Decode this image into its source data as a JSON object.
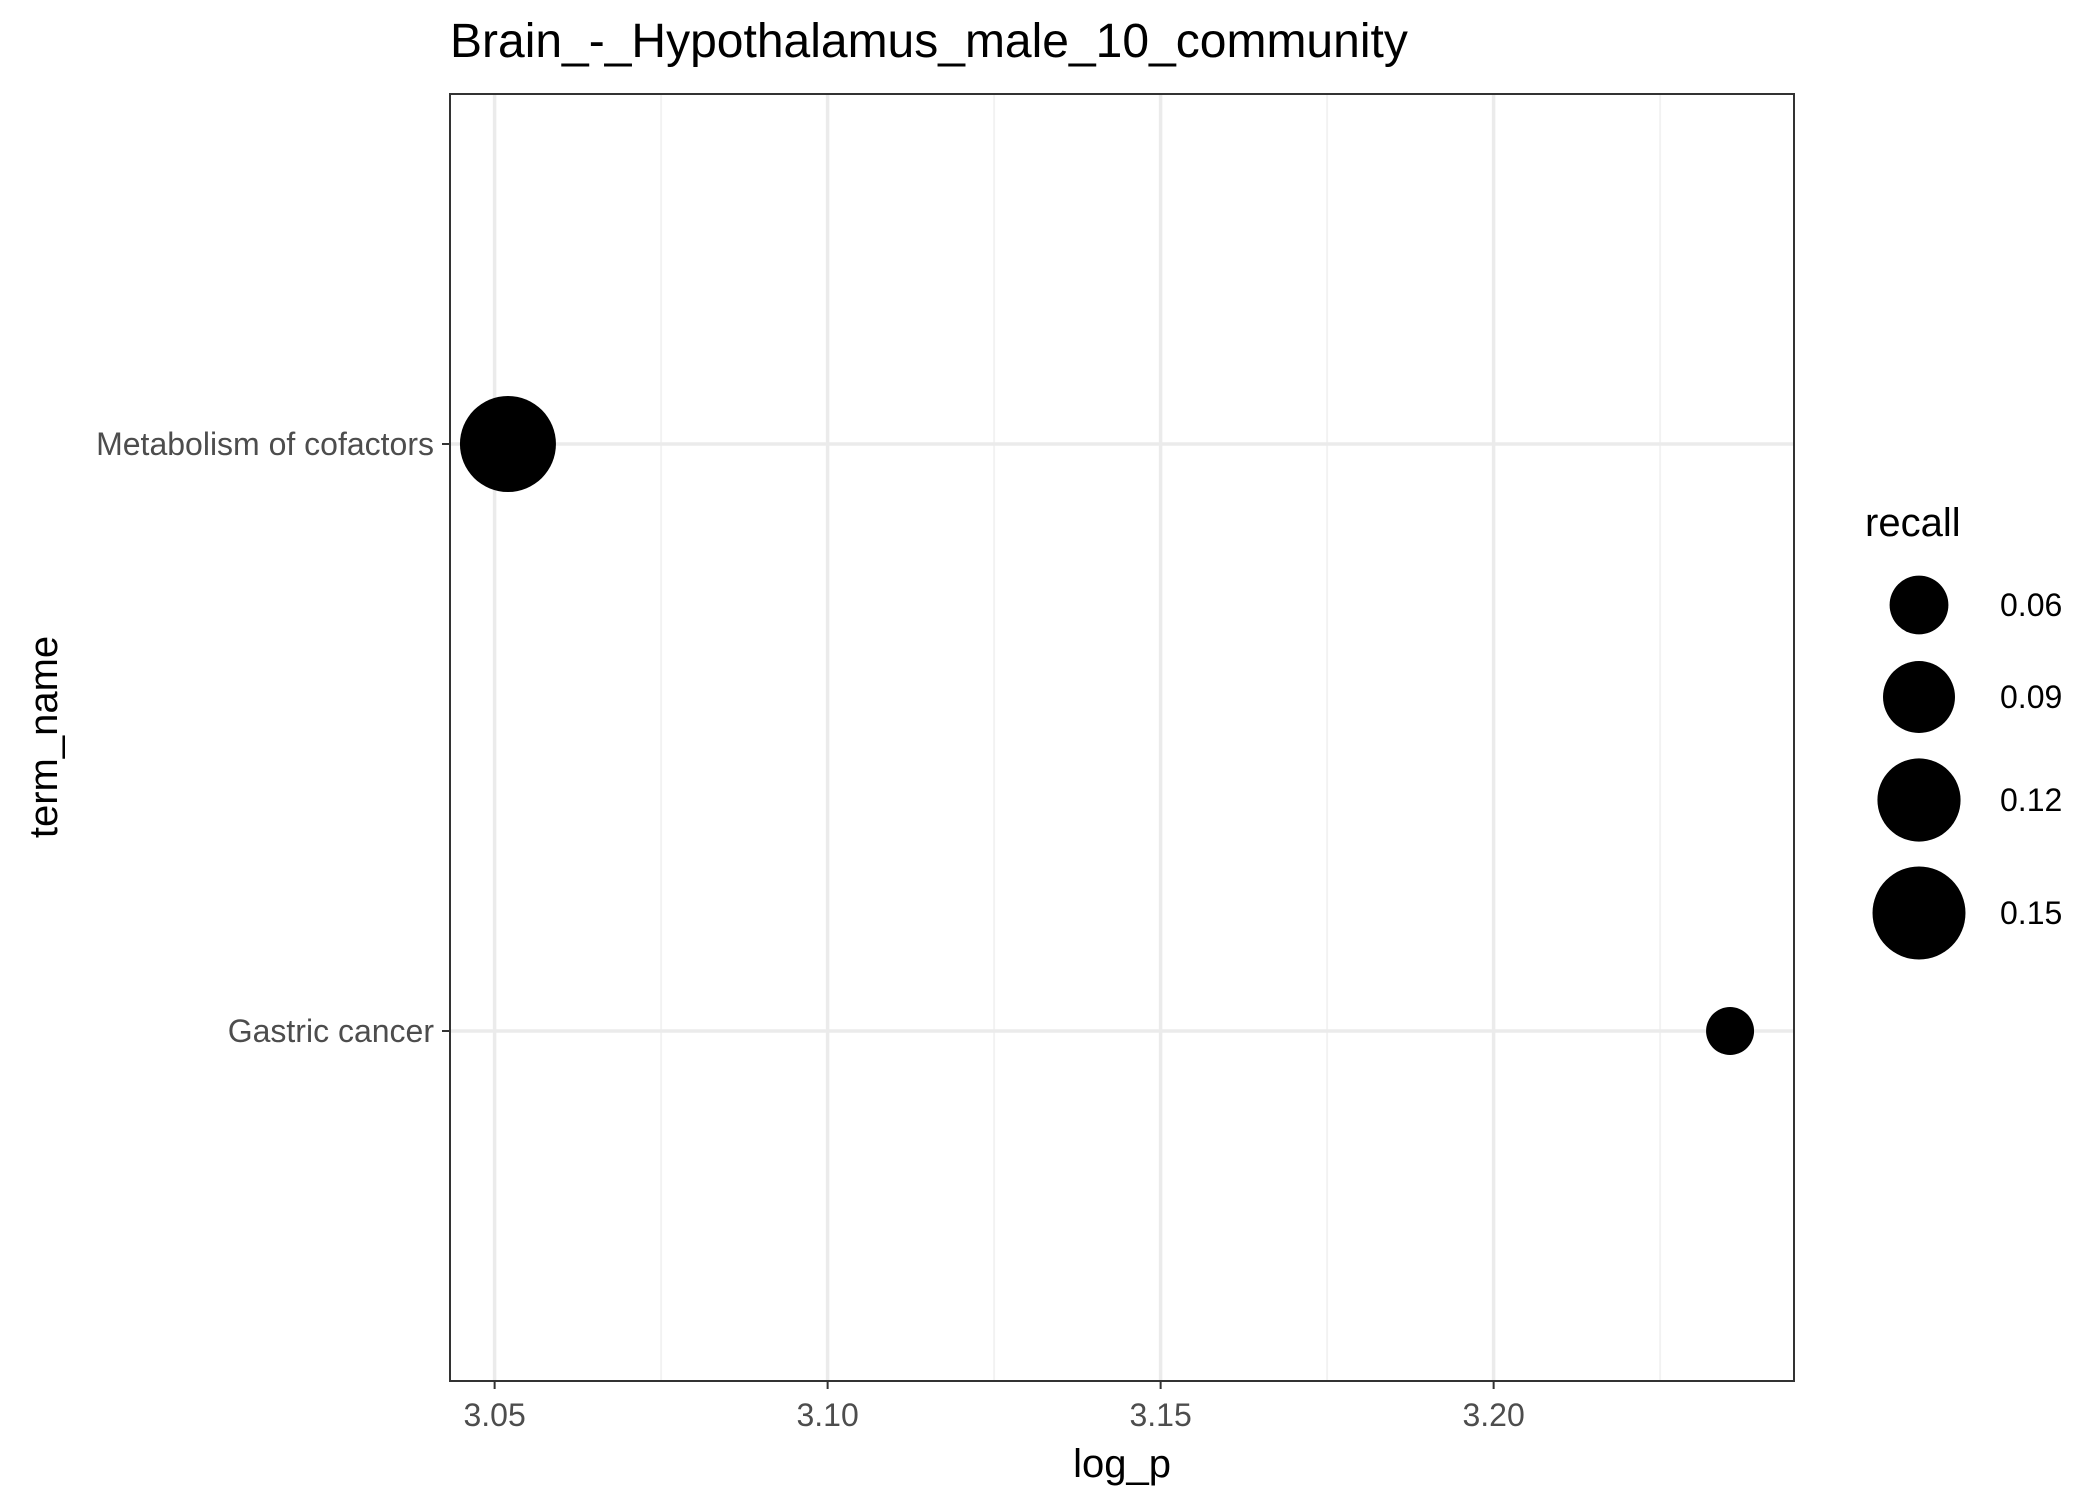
{
  "chart_data": {
    "type": "scatter",
    "title": "Brain_-_Hypothalamus_male_10_community",
    "xlabel": "log_p",
    "ylabel": "term_name",
    "xlim": [
      3.0433,
      3.2451
    ],
    "x_ticks": [
      "3.05",
      "3.10",
      "3.15",
      "3.20"
    ],
    "x_tick_values": [
      3.05,
      3.1,
      3.15,
      3.2
    ],
    "x_minor_gridlines": [
      3.075,
      3.125,
      3.175,
      3.225
    ],
    "categories": [
      "Metabolism of cofactors",
      "Gastric cancer"
    ],
    "points": [
      {
        "term_name": "Metabolism of cofactors",
        "log_p": 3.052,
        "recall": 0.16
      },
      {
        "term_name": "Gastric cancer",
        "log_p": 3.2355,
        "recall": 0.04
      }
    ],
    "size_legend": {
      "title": "recall",
      "values": [
        0.06,
        0.09,
        0.12,
        0.15
      ],
      "labels": [
        "0.06",
        "0.09",
        "0.12",
        "0.15"
      ]
    },
    "grid": true,
    "legend_position": "right",
    "colors": {
      "point": "#000000",
      "panel_border": "#333333",
      "major_grid": "#ebebeb",
      "minor_grid": "#f2f2f2",
      "tick_text": "#4d4d4d"
    }
  }
}
